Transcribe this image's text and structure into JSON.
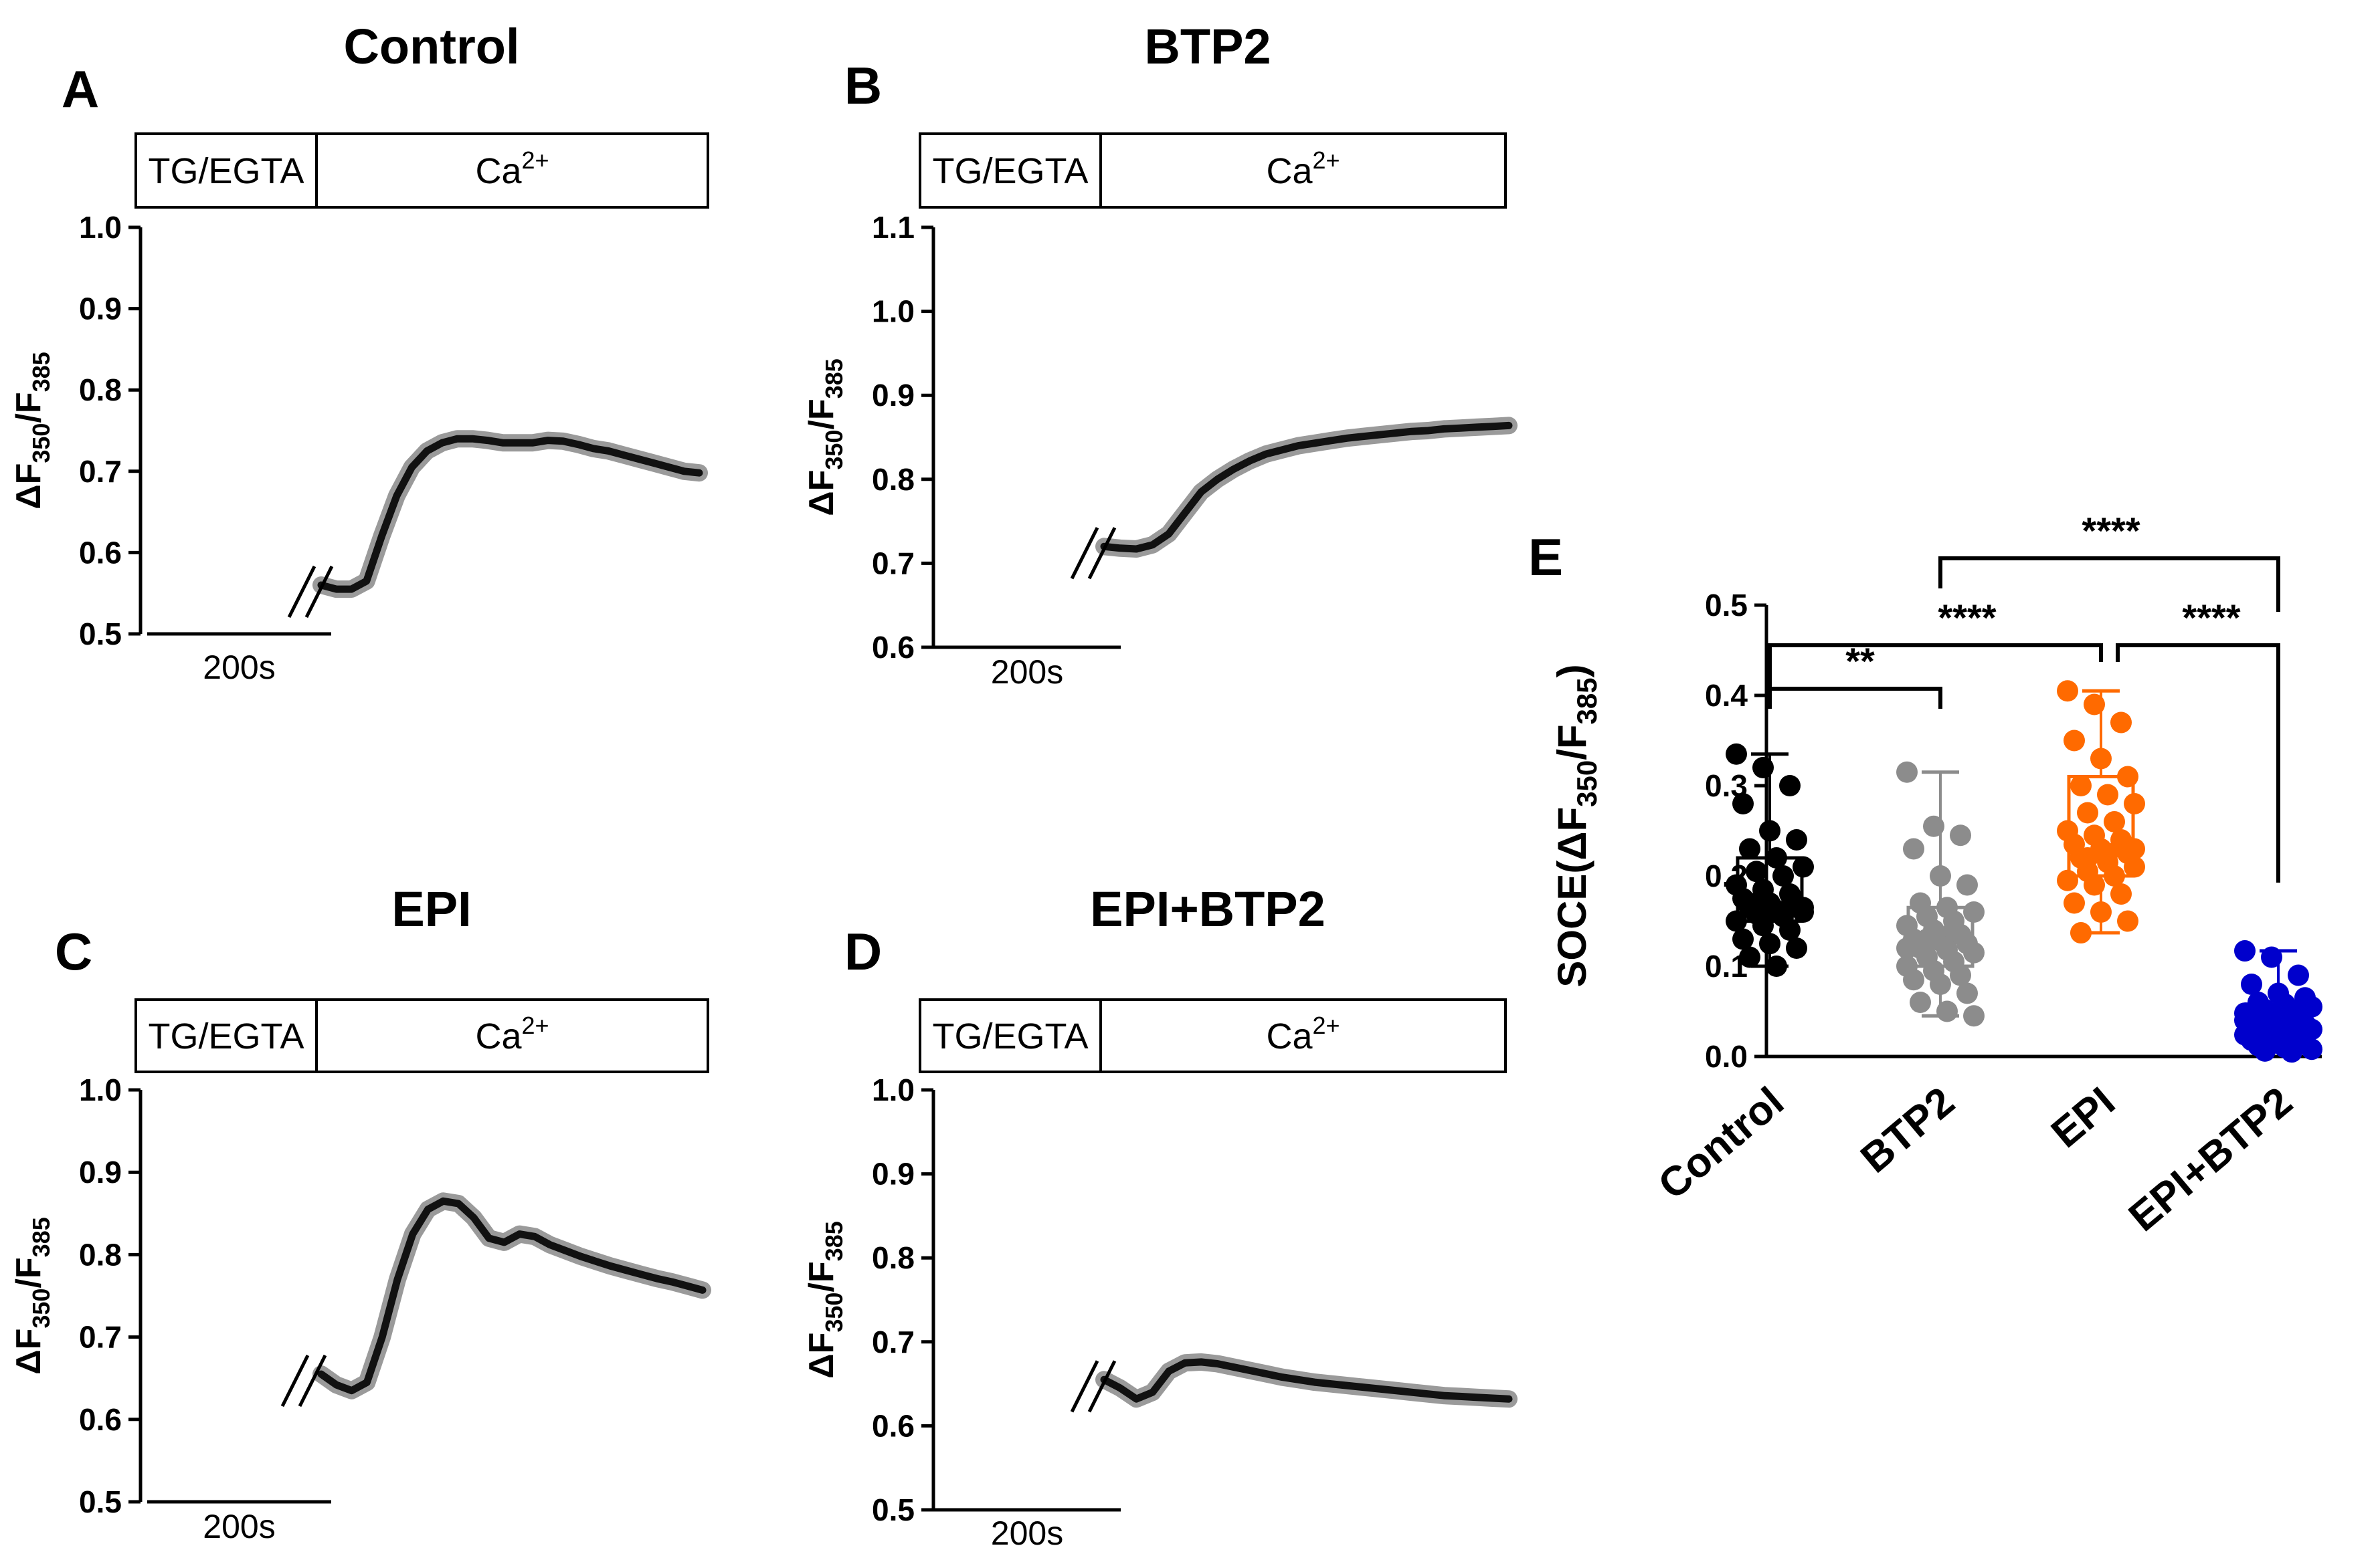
{
  "chart_data": [
    {
      "type": "line",
      "panel": "A",
      "title": "Control",
      "ylabel": "ΔF350/F385",
      "ylabel_main": "ΔF",
      "ylabel_sub1": "350",
      "ylabel_sep": "/F",
      "ylabel_sub2": "385",
      "ylim": [
        0.5,
        1.0
      ],
      "yticks": [
        "0.5",
        "0.6",
        "0.7",
        "0.8",
        "0.9",
        "1.0"
      ],
      "scale_bar": "200s",
      "bar_left": "TG/EGTA",
      "bar_right_main": "Ca",
      "bar_right_sup": "2+",
      "x": [
        0,
        20,
        40,
        60,
        80,
        100,
        120,
        140,
        160,
        180,
        200,
        220,
        240,
        260,
        280,
        300,
        320,
        340,
        360,
        380,
        400,
        420,
        440,
        460,
        480,
        500
      ],
      "y": [
        0.56,
        0.555,
        0.555,
        0.565,
        0.62,
        0.67,
        0.705,
        0.725,
        0.735,
        0.74,
        0.74,
        0.738,
        0.735,
        0.735,
        0.735,
        0.738,
        0.737,
        0.733,
        0.728,
        0.725,
        0.72,
        0.715,
        0.71,
        0.705,
        0.7,
        0.698
      ]
    },
    {
      "type": "line",
      "panel": "B",
      "title": "BTP2",
      "ylabel": "ΔF350/F385",
      "ylabel_main": "ΔF",
      "ylabel_sub1": "350",
      "ylabel_sep": "/F",
      "ylabel_sub2": "385",
      "ylim": [
        0.6,
        1.1
      ],
      "yticks": [
        "0.6",
        "0.7",
        "0.8",
        "0.9",
        "1.0",
        "1.1"
      ],
      "scale_bar": "200s",
      "bar_left": "TG/EGTA",
      "bar_right_main": "Ca",
      "bar_right_sup": "2+",
      "x": [
        0,
        20,
        40,
        60,
        80,
        100,
        120,
        140,
        160,
        180,
        200,
        220,
        240,
        260,
        280,
        300,
        320,
        340,
        360,
        380,
        400,
        420,
        440,
        460,
        480,
        500
      ],
      "y": [
        0.72,
        0.718,
        0.717,
        0.722,
        0.735,
        0.76,
        0.785,
        0.8,
        0.812,
        0.822,
        0.83,
        0.835,
        0.84,
        0.843,
        0.846,
        0.849,
        0.851,
        0.853,
        0.855,
        0.857,
        0.858,
        0.86,
        0.861,
        0.862,
        0.863,
        0.864
      ]
    },
    {
      "type": "line",
      "panel": "C",
      "title": "EPI",
      "ylabel": "ΔF350/F385",
      "ylabel_main": "ΔF",
      "ylabel_sub1": "350",
      "ylabel_sep": "/F",
      "ylabel_sub2": "385",
      "ylim": [
        0.5,
        1.0
      ],
      "yticks": [
        "0.5",
        "0.6",
        "0.7",
        "0.8",
        "0.9",
        "1.0"
      ],
      "scale_bar": "200s",
      "bar_left": "TG/EGTA",
      "bar_right_main": "Ca",
      "bar_right_sup": "2+",
      "x": [
        0,
        20,
        40,
        60,
        80,
        100,
        120,
        140,
        160,
        180,
        200,
        220,
        240,
        260,
        280,
        300,
        320,
        340,
        360,
        380,
        400,
        420,
        440,
        460,
        480,
        500
      ],
      "y": [
        0.655,
        0.642,
        0.635,
        0.645,
        0.7,
        0.77,
        0.825,
        0.855,
        0.865,
        0.862,
        0.845,
        0.82,
        0.815,
        0.825,
        0.822,
        0.812,
        0.805,
        0.798,
        0.792,
        0.786,
        0.781,
        0.776,
        0.771,
        0.767,
        0.762,
        0.757
      ]
    },
    {
      "type": "line",
      "panel": "D",
      "title": "EPI+BTP2",
      "ylabel": "ΔF350/F385",
      "ylabel_main": "ΔF",
      "ylabel_sub1": "350",
      "ylabel_sep": "/F",
      "ylabel_sub2": "385",
      "ylim": [
        0.5,
        1.0
      ],
      "yticks": [
        "0.5",
        "0.6",
        "0.7",
        "0.8",
        "0.9",
        "1.0"
      ],
      "scale_bar": "200s",
      "bar_left": "TG/EGTA",
      "bar_right_main": "Ca",
      "bar_right_sup": "2+",
      "x": [
        0,
        20,
        40,
        60,
        80,
        100,
        120,
        140,
        160,
        180,
        200,
        220,
        240,
        260,
        280,
        300,
        320,
        340,
        360,
        380,
        400,
        420,
        440,
        460,
        480,
        500
      ],
      "y": [
        0.655,
        0.645,
        0.632,
        0.64,
        0.665,
        0.675,
        0.676,
        0.674,
        0.67,
        0.666,
        0.662,
        0.658,
        0.655,
        0.652,
        0.65,
        0.648,
        0.646,
        0.644,
        0.642,
        0.64,
        0.638,
        0.636,
        0.635,
        0.634,
        0.633,
        0.632
      ]
    },
    {
      "type": "scatter",
      "panel": "E",
      "ylabel": "SOCE(ΔF350/F385)",
      "ylabel_main": "SOCE(ΔF",
      "ylabel_sub1": "350",
      "ylabel_sep": "/F",
      "ylabel_sub2": "385",
      "ylabel_end": ")",
      "ylim": [
        0.0,
        0.5
      ],
      "yticks": [
        "0.0",
        "0.1",
        "0.2",
        "0.3",
        "0.4",
        "0.5"
      ],
      "categories": [
        "Control",
        "BTP2",
        "EPI",
        "EPI+BTP2"
      ],
      "colors": [
        "#000000",
        "#8c8c8c",
        "#ff6a00",
        "#0000cc"
      ],
      "box": [
        {
          "min": 0.1,
          "q1": 0.15,
          "median": 0.165,
          "q3": 0.22,
          "max": 0.335
        },
        {
          "min": 0.045,
          "q1": 0.1,
          "median": 0.13,
          "q3": 0.165,
          "max": 0.315
        },
        {
          "min": 0.137,
          "q1": 0.2,
          "median": 0.225,
          "q3": 0.31,
          "max": 0.405
        },
        {
          "min": 0.005,
          "q1": 0.025,
          "median": 0.04,
          "q3": 0.058,
          "max": 0.117
        }
      ],
      "points": [
        [
          0.335,
          0.32,
          0.3,
          0.28,
          0.25,
          0.24,
          0.23,
          0.22,
          0.21,
          0.205,
          0.2,
          0.19,
          0.185,
          0.18,
          0.175,
          0.17,
          0.168,
          0.165,
          0.162,
          0.16,
          0.158,
          0.155,
          0.15,
          0.145,
          0.14,
          0.13,
          0.125,
          0.12,
          0.11,
          0.1,
          0.165,
          0.17,
          0.16
        ],
        [
          0.315,
          0.255,
          0.245,
          0.23,
          0.2,
          0.19,
          0.17,
          0.165,
          0.16,
          0.155,
          0.15,
          0.145,
          0.14,
          0.135,
          0.13,
          0.128,
          0.125,
          0.12,
          0.118,
          0.115,
          0.11,
          0.105,
          0.1,
          0.095,
          0.09,
          0.085,
          0.08,
          0.07,
          0.06,
          0.05,
          0.045,
          0.13,
          0.14,
          0.12
        ],
        [
          0.405,
          0.39,
          0.37,
          0.35,
          0.33,
          0.31,
          0.3,
          0.29,
          0.28,
          0.27,
          0.26,
          0.25,
          0.245,
          0.24,
          0.235,
          0.23,
          0.225,
          0.22,
          0.215,
          0.21,
          0.205,
          0.2,
          0.195,
          0.19,
          0.18,
          0.17,
          0.16,
          0.15,
          0.137,
          0.225,
          0.23,
          0.22
        ],
        [
          0.117,
          0.11,
          0.09,
          0.08,
          0.07,
          0.065,
          0.06,
          0.058,
          0.055,
          0.052,
          0.05,
          0.048,
          0.045,
          0.043,
          0.04,
          0.038,
          0.036,
          0.034,
          0.032,
          0.03,
          0.028,
          0.026,
          0.024,
          0.022,
          0.02,
          0.018,
          0.016,
          0.014,
          0.012,
          0.01,
          0.008,
          0.006,
          0.005,
          0.04,
          0.035,
          0.045
        ]
      ],
      "significance": [
        {
          "from": "Control",
          "to": "BTP2",
          "label": "**"
        },
        {
          "from": "Control",
          "to": "EPI",
          "label": "****"
        },
        {
          "from": "EPI",
          "to": "EPI+BTP2",
          "label": "****"
        },
        {
          "from": "BTP2",
          "to": "EPI+BTP2",
          "label": "****"
        }
      ]
    }
  ]
}
